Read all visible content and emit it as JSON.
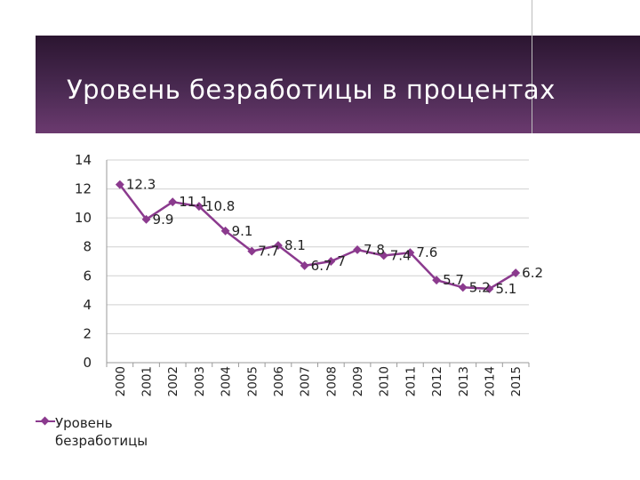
{
  "slide": {
    "title": "Уровень безработицы в процентах"
  },
  "colors": {
    "series": "#8b3a8e",
    "banner": "#4a2a52"
  },
  "chart_data": {
    "type": "line",
    "title": "",
    "xlabel": "",
    "ylabel": "",
    "ylim": [
      0,
      14
    ],
    "yticks": [
      0,
      2,
      4,
      6,
      8,
      10,
      12,
      14
    ],
    "grid": true,
    "legend": "bottom-left",
    "categories": [
      "2000",
      "2001",
      "2002",
      "2003",
      "2004",
      "2005",
      "2006",
      "2007",
      "2008",
      "2009",
      "2010",
      "2011",
      "2012",
      "2013",
      "2014",
      "2015"
    ],
    "series": [
      {
        "name": "Уровень безработицы",
        "values": [
          12.3,
          9.9,
          11.1,
          10.8,
          9.1,
          7.7,
          8.1,
          6.7,
          7,
          7.8,
          7.4,
          7.6,
          5.7,
          5.2,
          5.1,
          6.2
        ],
        "data_labels": [
          "12.3",
          "9.9",
          "11.1",
          "10.8",
          "9.1",
          "7.7",
          "8.1",
          "6.7",
          "7",
          "7.8",
          "7.4",
          "7.6",
          "5.7",
          "5.2",
          "5.1",
          "6.2"
        ]
      }
    ]
  }
}
